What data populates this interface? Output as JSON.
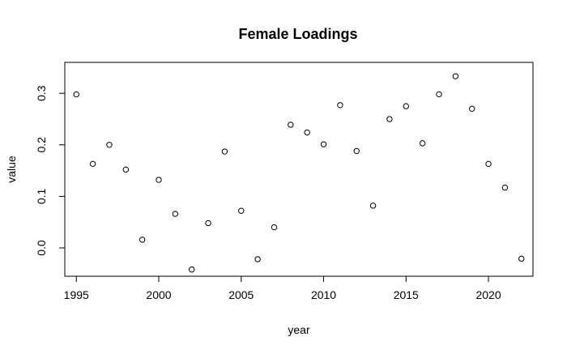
{
  "chart_data": {
    "type": "scatter",
    "title": "Female Loadings",
    "xlabel": "year",
    "ylabel": "value",
    "xlim": [
      1994.3,
      2022.7
    ],
    "ylim": [
      -0.055,
      0.36
    ],
    "xticks": [
      1995,
      2000,
      2005,
      2010,
      2015,
      2020
    ],
    "yticks": [
      0.0,
      0.1,
      0.2,
      0.3
    ],
    "xtick_labels": [
      "1995",
      "2000",
      "2005",
      "2010",
      "2015",
      "2020"
    ],
    "ytick_labels": [
      "0.0",
      "0.1",
      "0.2",
      "0.3"
    ],
    "marker": "open-circle",
    "grid": false,
    "series": [
      {
        "x": [
          1995,
          1996,
          1997,
          1998,
          1999,
          2000,
          2001,
          2002,
          2003,
          2004,
          2005,
          2006,
          2007,
          2008,
          2009,
          2010,
          2011,
          2012,
          2013,
          2014,
          2015,
          2016,
          2017,
          2018,
          2019,
          2020,
          2021,
          2022
        ],
        "y": [
          0.298,
          0.163,
          0.2,
          0.152,
          0.016,
          0.132,
          0.066,
          -0.042,
          0.048,
          0.187,
          0.072,
          -0.022,
          0.04,
          0.239,
          0.224,
          0.201,
          0.277,
          0.188,
          0.082,
          0.25,
          0.275,
          0.203,
          0.298,
          0.333,
          0.27,
          0.163,
          0.117,
          -0.021
        ]
      }
    ]
  }
}
